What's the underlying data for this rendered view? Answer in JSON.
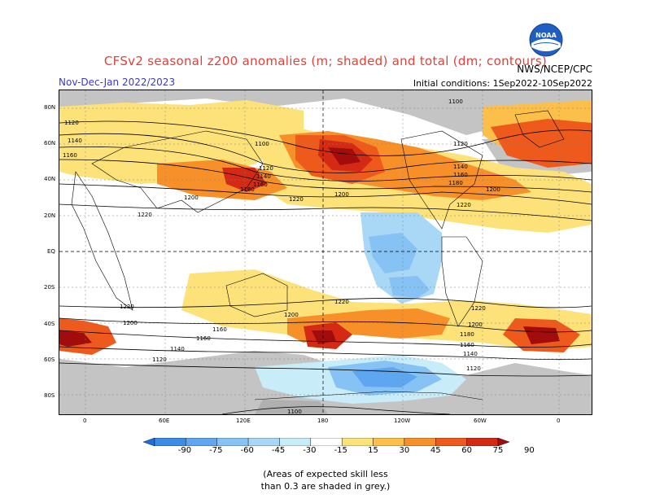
{
  "title": "CFSv2 seasonal z200 anomalies (m; shaded) and total (dm; contours)",
  "period": "Nov-Dec-Jan 2022/2023",
  "initial_conditions": "Initial conditions: 1Sep2022-10Sep2022",
  "agency": "NWS/NCEP/CPC",
  "logo_text": "NOAA",
  "lat_labels": [
    "80N",
    "60N",
    "40N",
    "20N",
    "EQ",
    "20S",
    "40S",
    "60S",
    "80S"
  ],
  "lon_labels": [
    "0",
    "60E",
    "120E",
    "180",
    "120W",
    "60W",
    "0"
  ],
  "contour_labels": [
    "1100",
    "1120",
    "1140",
    "1160",
    "1180",
    "1200",
    "1220"
  ],
  "colorbar": {
    "ticks": [
      "-90",
      "-75",
      "-60",
      "-45",
      "-30",
      "-15",
      "15",
      "30",
      "45",
      "60",
      "75",
      "90"
    ],
    "colors": [
      "#1e6fd9",
      "#3b8be8",
      "#5ea6f0",
      "#86c2f4",
      "#a8d8f6",
      "#c8ecf8",
      "#ffffff",
      "#fde27a",
      "#fcc04a",
      "#f8902a",
      "#ee5a1c",
      "#d42a14",
      "#a30c0c"
    ]
  },
  "footnote_line1": "(Areas of expected skill less",
  "footnote_line2": "than 0.3 are shaded in grey.)"
}
